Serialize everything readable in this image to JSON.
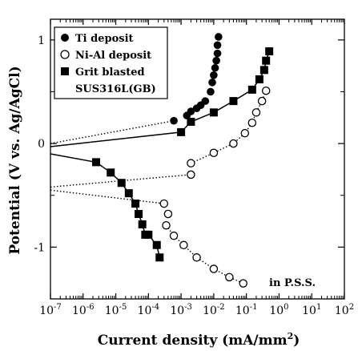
{
  "chart_data": {
    "type": "scatter",
    "xlabel": "Current density (mA/mm²)",
    "xlabel_main": "Current density (mA/mm",
    "xlabel_sup": "2",
    "xlabel_close": ")",
    "ylabel": "Potential (V vs. Ag/AgCl)",
    "xscale": "log",
    "xlim_exp": [
      -7,
      2
    ],
    "ylim": [
      -1.5,
      1.2
    ],
    "x_ticks": [
      {
        "exp": -7,
        "label_base": "10",
        "label_exp": "-7"
      },
      {
        "exp": -6,
        "label_base": "10",
        "label_exp": "-6"
      },
      {
        "exp": -5,
        "label_base": "10",
        "label_exp": "-5"
      },
      {
        "exp": -4,
        "label_base": "10",
        "label_exp": "-4"
      },
      {
        "exp": -3,
        "label_base": "10",
        "label_exp": "-3"
      },
      {
        "exp": -2,
        "label_base": "10",
        "label_exp": "-2"
      },
      {
        "exp": -1,
        "label_base": "10",
        "label_exp": "-1"
      },
      {
        "exp": 0,
        "label_base": "10",
        "label_exp": "0"
      },
      {
        "exp": 1,
        "label_base": "10",
        "label_exp": "1"
      },
      {
        "exp": 2,
        "label_base": "10",
        "label_exp": "2"
      }
    ],
    "y_ticks": [
      {
        "value": 1,
        "label": "1"
      },
      {
        "value": 0,
        "label": "0"
      },
      {
        "value": -1,
        "label": "-1"
      }
    ],
    "annotation": "in P.S.S.",
    "grid": false,
    "legend_position": "top-left",
    "series": [
      {
        "name": "Ti deposit",
        "marker": "circle-filled",
        "line": "dotted",
        "line_start": [
          1e-07,
          0.0
        ],
        "points": [
          [
            0.0006,
            0.22
          ],
          [
            0.0015,
            0.27
          ],
          [
            0.002,
            0.31
          ],
          [
            0.003,
            0.34
          ],
          [
            0.004,
            0.37
          ],
          [
            0.0055,
            0.41
          ],
          [
            0.008,
            0.5
          ],
          [
            0.009,
            0.59
          ],
          [
            0.01,
            0.66
          ],
          [
            0.011,
            0.73
          ],
          [
            0.012,
            0.8
          ],
          [
            0.013,
            0.87
          ],
          [
            0.013,
            0.95
          ],
          [
            0.014,
            1.03
          ]
        ]
      },
      {
        "name": "Ni-Al deposit",
        "marker": "circle-open",
        "line": "dotted",
        "line_start": [
          1e-07,
          -0.45
        ],
        "points": [
          [
            0.0003,
            -0.58
          ],
          [
            0.0004,
            -0.68
          ],
          [
            0.00035,
            -0.79
          ],
          [
            0.0006,
            -0.89
          ],
          [
            0.0012,
            -0.98
          ],
          [
            0.003,
            -1.1
          ],
          [
            0.01,
            -1.21
          ],
          [
            0.03,
            -1.29
          ],
          [
            0.08,
            -1.35
          ],
          [
            0.002,
            -0.3
          ],
          [
            0.002,
            -0.19
          ],
          [
            0.01,
            -0.09
          ],
          [
            0.04,
            0.0
          ],
          [
            0.09,
            0.1
          ],
          [
            0.15,
            0.2
          ],
          [
            0.2,
            0.3
          ],
          [
            0.3,
            0.41
          ],
          [
            0.4,
            0.51
          ]
        ]
      },
      {
        "name": "Grit blasted SUS316L(GB)",
        "name_line1": "Grit blasted",
        "name_line2": "SUS316L(GB)",
        "marker": "square-filled",
        "line": "solid",
        "line_start": [
          1e-07,
          -0.1
        ],
        "points": [
          [
            2.5e-06,
            -0.18
          ],
          [
            7e-06,
            -0.28
          ],
          [
            1.5e-05,
            -0.38
          ],
          [
            2.5e-05,
            -0.48
          ],
          [
            4e-05,
            -0.58
          ],
          [
            5e-05,
            -0.68
          ],
          [
            6.5e-05,
            -0.78
          ],
          [
            8e-05,
            -0.88
          ],
          [
            0.0001,
            -0.88
          ],
          [
            0.00018,
            -0.98
          ],
          [
            0.00022,
            -1.1
          ],
          [
            0.001,
            0.11
          ],
          [
            0.002,
            0.21
          ],
          [
            0.01,
            0.3
          ],
          [
            0.04,
            0.41
          ],
          [
            0.15,
            0.52
          ],
          [
            0.25,
            0.62
          ],
          [
            0.35,
            0.71
          ],
          [
            0.4,
            0.8
          ],
          [
            0.5,
            0.89
          ]
        ]
      }
    ],
    "lines": [
      {
        "series": 0,
        "style": "dotted",
        "path": [
          [
            1e-07,
            0.0
          ],
          [
            0.0006,
            0.22
          ]
        ]
      },
      {
        "series": 1,
        "style": "dotted",
        "path": [
          [
            1e-07,
            -0.45
          ],
          [
            0.0003,
            -0.58
          ]
        ]
      },
      {
        "series": 1,
        "style": "dotted",
        "path": [
          [
            1e-07,
            -0.42
          ],
          [
            0.002,
            -0.3
          ]
        ]
      },
      {
        "series": 1,
        "style": "dotted",
        "path": [
          [
            0.00035,
            -0.79
          ],
          [
            0.0006,
            -0.89
          ],
          [
            0.0012,
            -0.98
          ],
          [
            0.003,
            -1.1
          ],
          [
            0.01,
            -1.21
          ],
          [
            0.03,
            -1.29
          ],
          [
            0.08,
            -1.35
          ]
        ]
      },
      {
        "series": 1,
        "style": "dotted",
        "path": [
          [
            0.002,
            -0.19
          ],
          [
            0.01,
            -0.09
          ],
          [
            0.04,
            0.0
          ],
          [
            0.09,
            0.1
          ],
          [
            0.15,
            0.2
          ],
          [
            0.2,
            0.3
          ],
          [
            0.3,
            0.41
          ],
          [
            0.4,
            0.51
          ]
        ]
      },
      {
        "series": 2,
        "style": "solid",
        "path": [
          [
            1e-07,
            -0.1
          ],
          [
            2.5e-06,
            -0.18
          ],
          [
            7e-06,
            -0.28
          ],
          [
            1.5e-05,
            -0.38
          ],
          [
            2.5e-05,
            -0.48
          ],
          [
            4e-05,
            -0.58
          ],
          [
            5e-05,
            -0.68
          ],
          [
            6.5e-05,
            -0.78
          ],
          [
            8e-05,
            -0.88
          ],
          [
            0.0001,
            -0.88
          ],
          [
            0.00018,
            -0.98
          ],
          [
            0.00022,
            -1.1
          ]
        ]
      },
      {
        "series": 2,
        "style": "solid",
        "path": [
          [
            1e-07,
            -0.03
          ],
          [
            0.001,
            0.11
          ],
          [
            0.002,
            0.21
          ],
          [
            0.01,
            0.3
          ],
          [
            0.04,
            0.41
          ],
          [
            0.15,
            0.52
          ],
          [
            0.25,
            0.62
          ],
          [
            0.35,
            0.71
          ],
          [
            0.4,
            0.8
          ],
          [
            0.5,
            0.89
          ]
        ]
      }
    ]
  }
}
